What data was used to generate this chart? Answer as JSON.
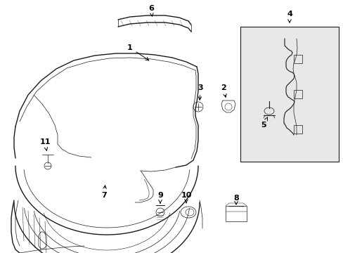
{
  "bg_color": "#ffffff",
  "line_color": "#1a1a1a",
  "box_fill": "#e8e8e8",
  "fig_width": 4.89,
  "fig_height": 3.6,
  "dpi": 100,
  "lw": 0.8,
  "lw_thin": 0.5,
  "lw_thick": 1.0
}
